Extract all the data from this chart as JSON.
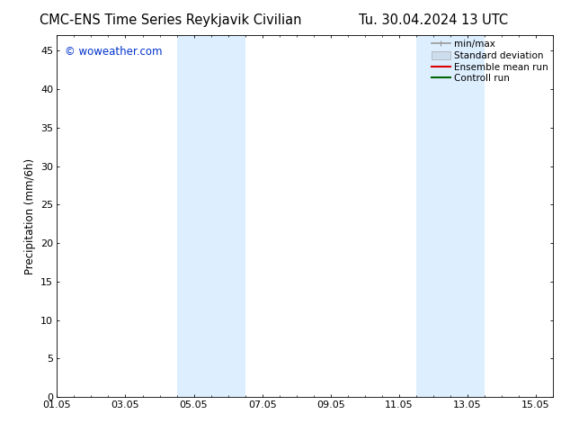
{
  "title_left": "CMC-ENS Time Series Reykjavik Civilian",
  "title_right": "Tu. 30.04.2024 13 UTC",
  "ylabel": "Precipitation (mm/6h)",
  "watermark": "© woweather.com",
  "xlim_min": 0,
  "xlim_max": 14,
  "ylim_min": 0,
  "ylim_max": 47,
  "xtick_labels": [
    "01.05",
    "03.05",
    "05.05",
    "07.05",
    "09.05",
    "11.05",
    "13.05",
    "15.05"
  ],
  "xtick_positions": [
    0,
    2,
    4,
    6,
    8,
    10,
    12,
    14
  ],
  "ytick_positions": [
    0,
    5,
    10,
    15,
    20,
    25,
    30,
    35,
    40,
    45
  ],
  "shaded_regions": [
    {
      "xmin": 3.5,
      "xmax": 5.5
    },
    {
      "xmin": 10.5,
      "xmax": 12.5
    }
  ],
  "shaded_color": "#ddeeff",
  "background_color": "#ffffff",
  "legend_items": [
    {
      "label": "min/max",
      "color": "#999999",
      "lw": 1.2,
      "style": "minmax"
    },
    {
      "label": "Standard deviation",
      "color": "#ccdded",
      "lw": 8,
      "style": "band"
    },
    {
      "label": "Ensemble mean run",
      "color": "#dd0000",
      "lw": 1.5,
      "style": "line"
    },
    {
      "label": "Controll run",
      "color": "#006600",
      "lw": 1.5,
      "style": "line"
    }
  ],
  "watermark_color": "#0033cc",
  "title_fontsize": 10.5,
  "axis_label_fontsize": 8.5,
  "tick_fontsize": 8,
  "legend_fontsize": 7.5
}
